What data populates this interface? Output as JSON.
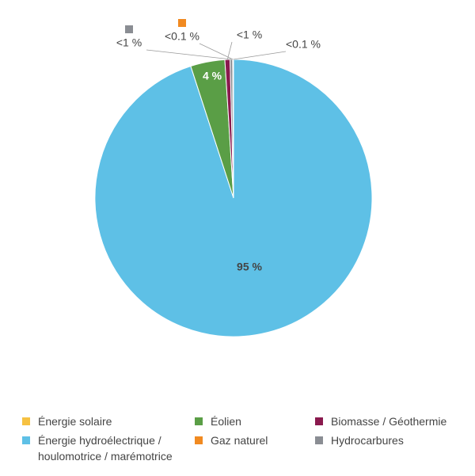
{
  "chart_data": {
    "type": "pie",
    "categories": [
      "Énergie hydroélectrique / houlomotrice / marémotrice",
      "Éolien",
      "Biomasse / Géothermie",
      "Hydrocarbures",
      "Gaz naturel",
      "Énergie solaire"
    ],
    "values": [
      95,
      4,
      0.6,
      0.3,
      0.05,
      0.05
    ],
    "value_labels": [
      "95 %",
      "4 %",
      "<1 %",
      "<1 %",
      "<0.1 %",
      "<0.1 %"
    ],
    "colors": [
      "#5ec0e6",
      "#5a9e46",
      "#8a1a4e",
      "#8a8d93",
      "#f18a21",
      "#f6c142"
    ]
  }
}
